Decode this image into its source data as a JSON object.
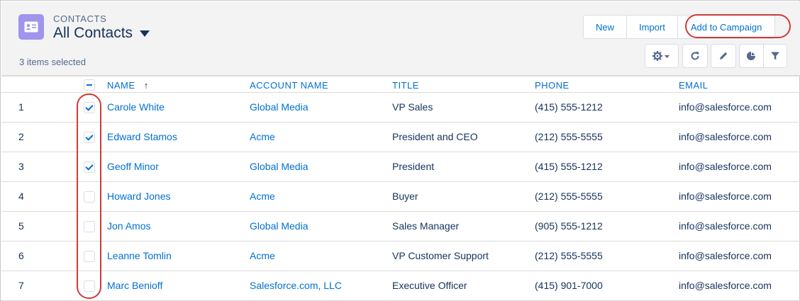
{
  "header": {
    "object_type": "CONTACTS",
    "list_view_name": "All Contacts",
    "selected_count": "3 items selected",
    "icon_color": "#a094ed"
  },
  "actions": {
    "new_label": "New",
    "import_label": "Import",
    "add_to_campaign_label": "Add to Campaign"
  },
  "toolbar_icons": [
    "gear-icon",
    "refresh-icon",
    "edit-icon",
    "pie-chart-icon",
    "filter-icon"
  ],
  "table": {
    "columns": {
      "name": "NAME",
      "sort_arrow": "↑",
      "account": "ACCOUNT NAME",
      "title": "TITLE",
      "phone": "PHONE",
      "email": "EMAIL"
    },
    "rows": [
      {
        "num": "1",
        "checked": true,
        "name": "Carole White",
        "account": "Global Media",
        "title": "VP Sales",
        "phone": "(415) 555-1212",
        "email": "info@salesforce.com"
      },
      {
        "num": "2",
        "checked": true,
        "name": "Edward Stamos",
        "account": "Acme",
        "title": "President and CEO",
        "phone": "(212) 555-5555",
        "email": "info@salesforce.com"
      },
      {
        "num": "3",
        "checked": true,
        "name": "Geoff Minor",
        "account": "Global Media",
        "title": "President",
        "phone": "(415) 555-1212",
        "email": "info@salesforce.com"
      },
      {
        "num": "4",
        "checked": false,
        "name": "Howard Jones",
        "account": "Acme",
        "title": "Buyer",
        "phone": "(212) 555-5555",
        "email": "info@salesforce.com"
      },
      {
        "num": "5",
        "checked": false,
        "name": "Jon Amos",
        "account": "Global Media",
        "title": "Sales Manager",
        "phone": "(905) 555-1212",
        "email": "info@salesforce.com"
      },
      {
        "num": "6",
        "checked": false,
        "name": "Leanne Tomlin",
        "account": "Acme",
        "title": "VP Customer Support",
        "phone": "(212) 555-5555",
        "email": "info@salesforce.com"
      },
      {
        "num": "7",
        "checked": false,
        "name": "Marc Benioff",
        "account": "Salesforce.com, LLC",
        "title": "Executive Officer",
        "phone": "(415) 901-7000",
        "email": "info@salesforce.com"
      }
    ]
  },
  "colors": {
    "link": "#0070d2",
    "text": "#16325c",
    "highlight": "#d03a3a"
  }
}
